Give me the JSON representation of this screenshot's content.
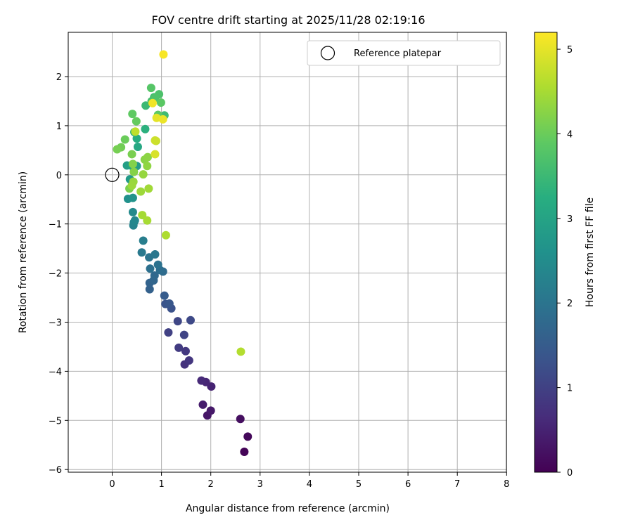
{
  "chart_data": {
    "type": "scatter",
    "title": "FOV centre drift starting at 2025/11/28 02:19:16",
    "xlabel": "Angular distance from reference (arcmin)",
    "ylabel": "Rotation from reference (arcmin)",
    "xlim": [
      -0.9,
      8.0
    ],
    "ylim": [
      -6.05,
      2.9
    ],
    "xticks": [
      0,
      1,
      2,
      3,
      4,
      5,
      6,
      7,
      8
    ],
    "yticks": [
      2,
      1,
      0,
      -1,
      -2,
      -3,
      -4,
      -5,
      -6
    ],
    "grid": true,
    "legend": {
      "position": "top-right",
      "entries": [
        "Reference platepar"
      ]
    },
    "reference_point": {
      "x": 0,
      "y": 0
    },
    "colorbar": {
      "label": "Hours from first FF file",
      "min": 0,
      "max": 5.2,
      "ticks": [
        0,
        1,
        2,
        3,
        4,
        5
      ]
    },
    "points": [
      {
        "x": 2.68,
        "y": -5.64,
        "c": 0.05
      },
      {
        "x": 2.75,
        "y": -5.33,
        "c": 0.1
      },
      {
        "x": 2.6,
        "y": -4.97,
        "c": 0.2
      },
      {
        "x": 1.93,
        "y": -4.9,
        "c": 0.3
      },
      {
        "x": 2.0,
        "y": -4.8,
        "c": 0.35
      },
      {
        "x": 1.84,
        "y": -4.68,
        "c": 0.4
      },
      {
        "x": 2.01,
        "y": -4.31,
        "c": 0.5
      },
      {
        "x": 1.9,
        "y": -4.22,
        "c": 0.55
      },
      {
        "x": 1.81,
        "y": -4.19,
        "c": 0.6
      },
      {
        "x": 1.47,
        "y": -3.86,
        "c": 0.75
      },
      {
        "x": 1.56,
        "y": -3.78,
        "c": 0.8
      },
      {
        "x": 1.49,
        "y": -3.59,
        "c": 0.85
      },
      {
        "x": 1.35,
        "y": -3.52,
        "c": 0.9
      },
      {
        "x": 1.14,
        "y": -3.21,
        "c": 1.0
      },
      {
        "x": 1.46,
        "y": -3.26,
        "c": 1.05
      },
      {
        "x": 1.33,
        "y": -2.98,
        "c": 1.1
      },
      {
        "x": 1.59,
        "y": -2.96,
        "c": 1.15
      },
      {
        "x": 1.2,
        "y": -2.72,
        "c": 1.3
      },
      {
        "x": 1.08,
        "y": -2.63,
        "c": 1.35
      },
      {
        "x": 1.16,
        "y": -2.62,
        "c": 1.4
      },
      {
        "x": 1.06,
        "y": -2.46,
        "c": 1.5
      },
      {
        "x": 0.76,
        "y": -2.33,
        "c": 1.6
      },
      {
        "x": 0.76,
        "y": -2.2,
        "c": 1.65
      },
      {
        "x": 0.84,
        "y": -2.15,
        "c": 1.7
      },
      {
        "x": 0.86,
        "y": -2.05,
        "c": 1.75
      },
      {
        "x": 1.03,
        "y": -1.97,
        "c": 1.8
      },
      {
        "x": 0.97,
        "y": -1.94,
        "c": 1.85
      },
      {
        "x": 0.77,
        "y": -1.91,
        "c": 1.9
      },
      {
        "x": 0.93,
        "y": -1.83,
        "c": 1.95
      },
      {
        "x": 0.75,
        "y": -1.68,
        "c": 2.0
      },
      {
        "x": 0.87,
        "y": -1.62,
        "c": 2.05
      },
      {
        "x": 0.6,
        "y": -1.58,
        "c": 2.1
      },
      {
        "x": 0.63,
        "y": -1.34,
        "c": 2.2
      },
      {
        "x": 0.43,
        "y": -1.03,
        "c": 2.3
      },
      {
        "x": 0.44,
        "y": -0.97,
        "c": 2.35
      },
      {
        "x": 0.46,
        "y": -0.93,
        "c": 2.4
      },
      {
        "x": 0.42,
        "y": -0.76,
        "c": 2.45
      },
      {
        "x": 0.32,
        "y": -0.49,
        "c": 2.6
      },
      {
        "x": 0.42,
        "y": -0.47,
        "c": 2.65
      },
      {
        "x": 0.36,
        "y": -0.09,
        "c": 2.8
      },
      {
        "x": 0.5,
        "y": 0.18,
        "c": 2.85
      },
      {
        "x": 0.3,
        "y": 0.19,
        "c": 2.9
      },
      {
        "x": 0.4,
        "y": 0.18,
        "c": 3.0
      },
      {
        "x": 0.52,
        "y": 0.57,
        "c": 3.1
      },
      {
        "x": 0.5,
        "y": 0.74,
        "c": 3.2
      },
      {
        "x": 0.67,
        "y": 0.93,
        "c": 3.3
      },
      {
        "x": 0.45,
        "y": 0.87,
        "c": 3.4
      },
      {
        "x": 0.68,
        "y": 1.41,
        "c": 3.5
      },
      {
        "x": 1.06,
        "y": 1.21,
        "c": 3.55
      },
      {
        "x": 0.85,
        "y": 1.58,
        "c": 3.6
      },
      {
        "x": 0.8,
        "y": 1.5,
        "c": 3.65
      },
      {
        "x": 0.95,
        "y": 1.64,
        "c": 3.7
      },
      {
        "x": 0.87,
        "y": 1.56,
        "c": 3.72
      },
      {
        "x": 0.79,
        "y": 1.77,
        "c": 3.8
      },
      {
        "x": 0.99,
        "y": 1.47,
        "c": 3.85
      },
      {
        "x": 0.93,
        "y": 1.22,
        "c": 3.88
      },
      {
        "x": 0.41,
        "y": 1.24,
        "c": 3.9
      },
      {
        "x": 0.49,
        "y": 1.09,
        "c": 3.95
      },
      {
        "x": 0.26,
        "y": 0.72,
        "c": 4.0
      },
      {
        "x": 0.18,
        "y": 0.56,
        "c": 4.05
      },
      {
        "x": 0.1,
        "y": 0.52,
        "c": 4.1
      },
      {
        "x": 0.4,
        "y": 0.42,
        "c": 4.12
      },
      {
        "x": 0.35,
        "y": -0.28,
        "c": 4.15
      },
      {
        "x": 0.42,
        "y": 0.22,
        "c": 4.2
      },
      {
        "x": 0.44,
        "y": 0.06,
        "c": 4.22
      },
      {
        "x": 0.66,
        "y": 0.31,
        "c": 4.25
      },
      {
        "x": 0.72,
        "y": 0.36,
        "c": 4.28
      },
      {
        "x": 0.71,
        "y": 0.18,
        "c": 4.3
      },
      {
        "x": 0.63,
        "y": 0.01,
        "c": 4.35
      },
      {
        "x": 0.43,
        "y": -0.14,
        "c": 4.38
      },
      {
        "x": 0.4,
        "y": -0.22,
        "c": 4.4
      },
      {
        "x": 0.58,
        "y": -0.34,
        "c": 4.42
      },
      {
        "x": 0.74,
        "y": -0.28,
        "c": 4.45
      },
      {
        "x": 0.61,
        "y": -0.82,
        "c": 4.48
      },
      {
        "x": 0.71,
        "y": -0.93,
        "c": 4.5
      },
      {
        "x": 1.09,
        "y": -1.23,
        "c": 4.55
      },
      {
        "x": 2.61,
        "y": -3.6,
        "c": 4.6
      },
      {
        "x": 0.47,
        "y": 0.88,
        "c": 4.7
      },
      {
        "x": 0.89,
        "y": 0.69,
        "c": 4.75
      },
      {
        "x": 0.87,
        "y": 0.7,
        "c": 4.8
      },
      {
        "x": 0.87,
        "y": 0.42,
        "c": 4.9
      },
      {
        "x": 0.9,
        "y": 1.16,
        "c": 5.0
      },
      {
        "x": 1.03,
        "y": 1.13,
        "c": 5.05
      },
      {
        "x": 0.82,
        "y": 1.46,
        "c": 5.1
      },
      {
        "x": 1.04,
        "y": 2.45,
        "c": 5.15
      }
    ]
  }
}
